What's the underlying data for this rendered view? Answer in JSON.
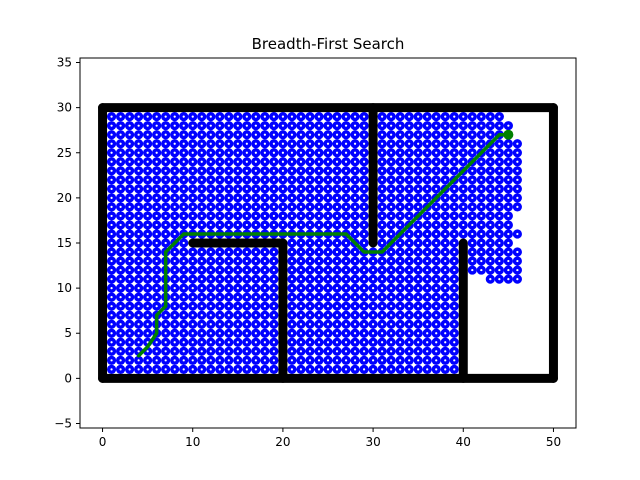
{
  "chart_data": {
    "type": "scatter",
    "title": "Breadth-First Search",
    "xlabel": "",
    "ylabel": "",
    "xlim": [
      -2.5,
      52.5
    ],
    "ylim": [
      -5.5,
      35.5
    ],
    "xticks": [
      0,
      10,
      20,
      30,
      40,
      50
    ],
    "yticks": [
      -5,
      0,
      5,
      10,
      15,
      20,
      25,
      30,
      35
    ],
    "grid": false,
    "colors": {
      "obstacle": "#000000",
      "visited": "#0000ff",
      "path": "#008000",
      "white_marker": "#ffffff"
    },
    "obstacles": {
      "boundary": {
        "xmin": 0,
        "xmax": 50,
        "ymin": 0,
        "ymax": 30
      },
      "walls": [
        {
          "x": [
            10,
            20
          ],
          "y": [
            15,
            15
          ]
        },
        {
          "x": [
            20,
            20
          ],
          "y": [
            0,
            15
          ]
        },
        {
          "x": [
            30,
            30
          ],
          "y": [
            15,
            30
          ]
        },
        {
          "x": [
            40,
            40
          ],
          "y": [
            0,
            15
          ]
        }
      ]
    },
    "visited_region": {
      "full_fill": {
        "x": [
          1,
          39
        ],
        "y": [
          1,
          29
        ]
      },
      "right_columns": [
        {
          "x": 40,
          "y": [
            16,
            29
          ]
        },
        {
          "x": 41,
          "y": [
            12,
            29
          ]
        },
        {
          "x": 42,
          "y": [
            12,
            29
          ]
        },
        {
          "x": 43,
          "y": [
            11,
            29
          ]
        },
        {
          "x": 44,
          "y": [
            11,
            29
          ]
        },
        {
          "x": 45,
          "y": [
            11,
            28
          ]
        },
        {
          "x": 46,
          "y": [
            11,
            26
          ]
        }
      ],
      "right_gaps": [
        {
          "x": 46,
          "y": [
            15,
            17,
            18
          ]
        }
      ]
    },
    "path": {
      "name": "",
      "x": [
        4,
        5,
        6,
        6,
        7,
        7,
        8,
        9,
        10,
        27,
        28,
        29,
        31,
        32,
        44,
        45
      ],
      "y": [
        2.5,
        3.5,
        5,
        7,
        8,
        14,
        15,
        16,
        16,
        16,
        15,
        14,
        14,
        15,
        27,
        27
      ]
    },
    "start": {
      "x": 4,
      "y": 2.5
    },
    "goal": {
      "x": 45,
      "y": 27
    }
  }
}
